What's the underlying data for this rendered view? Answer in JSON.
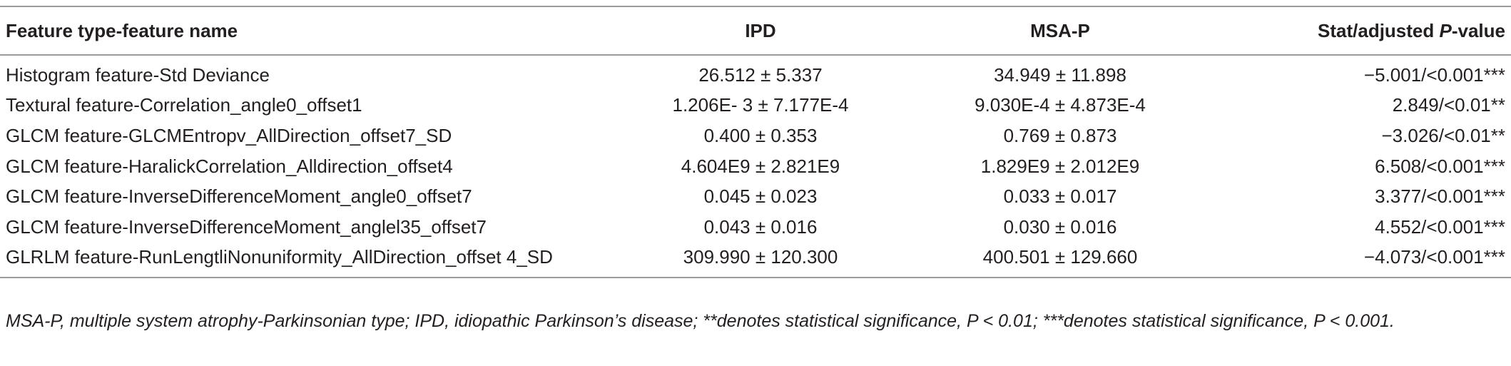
{
  "table": {
    "headers": {
      "feature": "Feature type-feature name",
      "ipd": "IPD",
      "msap": "MSA-P",
      "stat_prefix": "Stat/adjusted ",
      "stat_italic": "P",
      "stat_suffix": "-value"
    },
    "rows": [
      {
        "feature": "Histogram feature-Std Deviance",
        "ipd": "26.512 ± 5.337",
        "msap": "34.949 ± 11.898",
        "stat": "−5.001/<0.001***"
      },
      {
        "feature": "Textural feature-Correlation_angle0_offset1",
        "ipd": "1.206E- 3 ± 7.177E-4",
        "msap": "9.030E-4 ± 4.873E-4",
        "stat": "2.849/<0.01**"
      },
      {
        "feature": "GLCM feature-GLCMEntropv_AllDirection_offset7_SD",
        "ipd": "0.400 ± 0.353",
        "msap": "0.769 ± 0.873",
        "stat": "−3.026/<0.01**"
      },
      {
        "feature": "GLCM feature-HaralickCorrelation_Alldirection_offset4",
        "ipd": "4.604E9 ± 2.821E9",
        "msap": "1.829E9 ± 2.012E9",
        "stat": "6.508/<0.001***"
      },
      {
        "feature": "GLCM feature-InverseDifferenceMoment_angle0_offset7",
        "ipd": "0.045 ± 0.023",
        "msap": "0.033 ± 0.017",
        "stat": "3.377/<0.001***"
      },
      {
        "feature": "GLCM feature-InverseDifferenceMoment_anglel35_offset7",
        "ipd": "0.043 ± 0.016",
        "msap": "0.030 ± 0.016",
        "stat": "4.552/<0.001***"
      },
      {
        "feature": "GLRLM feature-RunLengtliNonuniformity_AllDirection_offset 4_SD",
        "ipd": "309.990 ± 120.300",
        "msap": "400.501 ± 129.660",
        "stat": "−4.073/<0.001***"
      }
    ]
  },
  "footnote": "MSA-P, multiple system atrophy-Parkinsonian type; IPD, idiopathic Parkinson’s disease; **denotes statistical significance, P < 0.01; ***denotes statistical significance, P < 0.001."
}
